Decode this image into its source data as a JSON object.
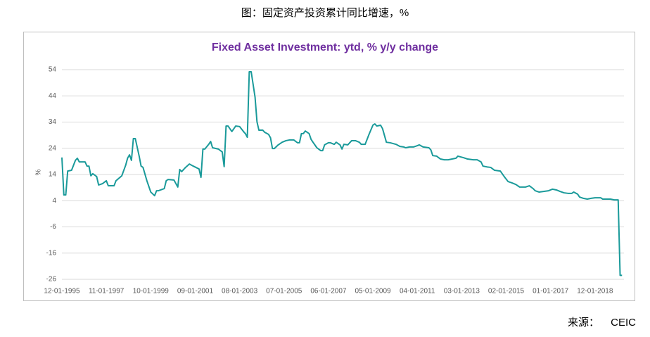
{
  "caption": "图：固定资产投资累计同比增速，%",
  "source_label": "来源：",
  "source": "CEIC",
  "chart_data": {
    "type": "line",
    "title": "Fixed Asset Investment: ytd, % y/y change",
    "y_label": "%",
    "color": "#1a9a9a",
    "grid": true,
    "ylim": [
      -26,
      54
    ],
    "yticks": [
      54,
      44,
      34,
      24,
      14,
      4,
      -6,
      -16,
      -26
    ],
    "xlim": [
      "12-01-1995",
      "03-01-2020"
    ],
    "xticks": [
      "12-01-1995",
      "11-01-1997",
      "10-01-1999",
      "09-01-2001",
      "08-01-2003",
      "07-01-2005",
      "06-01-2007",
      "05-01-2009",
      "04-01-2011",
      "03-01-2013",
      "02-01-2015",
      "01-01-2017",
      "12-01-2018"
    ],
    "x": [
      "12-01-1995",
      "01-01-1996",
      "02-01-1996",
      "03-01-1996",
      "05-01-1996",
      "07-01-1996",
      "08-01-1996",
      "09-01-1996",
      "12-01-1996",
      "01-01-1997",
      "02-01-1997",
      "03-01-1997",
      "04-01-1997",
      "06-01-1997",
      "07-01-1997",
      "09-01-1997",
      "11-01-1997",
      "12-01-1997",
      "03-01-1998",
      "04-01-1998",
      "07-01-1998",
      "09-01-1998",
      "10-01-1998",
      "11-01-1998",
      "12-01-1998",
      "01-01-1999",
      "02-01-1999",
      "04-01-1999",
      "05-01-1999",
      "06-01-1999",
      "08-01-1999",
      "10-01-1999",
      "12-01-1999",
      "01-01-2000",
      "02-01-2000",
      "05-01-2000",
      "06-01-2000",
      "07-01-2000",
      "10-01-2000",
      "12-01-2000",
      "01-01-2001",
      "02-01-2001",
      "04-01-2001",
      "06-01-2001",
      "08-01-2001",
      "11-01-2001",
      "12-01-2001",
      "01-01-2002",
      "02-01-2002",
      "04-01-2002",
      "05-01-2002",
      "06-01-2002",
      "09-01-2002",
      "11-01-2002",
      "12-01-2002",
      "01-01-2003",
      "02-01-2003",
      "04-01-2003",
      "06-01-2003",
      "08-01-2003",
      "10-01-2003",
      "11-01-2003",
      "12-01-2003",
      "01-01-2004",
      "02-01-2004",
      "04-01-2004",
      "05-01-2004",
      "06-01-2004",
      "08-01-2004",
      "09-01-2004",
      "11-01-2004",
      "12-01-2004",
      "01-01-2005",
      "02-01-2005",
      "04-01-2005",
      "06-01-2005",
      "08-01-2005",
      "10-01-2005",
      "12-01-2005",
      "02-01-2006",
      "03-01-2006",
      "04-01-2006",
      "05-01-2006",
      "06-01-2006",
      "08-01-2006",
      "09-01-2006",
      "10-01-2006",
      "12-01-2006",
      "02-01-2007",
      "03-01-2007",
      "04-01-2007",
      "06-01-2007",
      "07-01-2007",
      "09-01-2007",
      "10-01-2007",
      "12-01-2007",
      "01-01-2008",
      "02-01-2008",
      "04-01-2008",
      "06-01-2008",
      "08-01-2008",
      "10-01-2008",
      "11-01-2008",
      "01-01-2009",
      "03-01-2009",
      "05-01-2009",
      "06-01-2009",
      "07-01-2009",
      "09-01-2009",
      "10-01-2009",
      "12-01-2009",
      "02-01-2010",
      "05-01-2010",
      "07-01-2010",
      "09-01-2010",
      "10-01-2010",
      "12-01-2010",
      "02-01-2011",
      "04-01-2011",
      "05-01-2011",
      "07-01-2011",
      "10-01-2011",
      "11-01-2011",
      "12-01-2011",
      "02-01-2012",
      "04-01-2012",
      "06-01-2012",
      "08-01-2012",
      "10-01-2012",
      "12-01-2012",
      "01-01-2013",
      "04-01-2013",
      "06-01-2013",
      "09-01-2013",
      "11-01-2013",
      "01-01-2014",
      "02-01-2014",
      "04-01-2014",
      "06-01-2014",
      "08-01-2014",
      "11-01-2014",
      "01-01-2015",
      "03-01-2015",
      "05-01-2015",
      "07-01-2015",
      "09-01-2015",
      "12-01-2015",
      "02-01-2016",
      "04-01-2016",
      "05-01-2016",
      "07-01-2016",
      "09-01-2016",
      "12-01-2016",
      "02-01-2017",
      "04-01-2017",
      "06-01-2017",
      "08-01-2017",
      "10-01-2017",
      "12-01-2017",
      "01-01-2018",
      "03-01-2018",
      "04-01-2018",
      "06-01-2018",
      "08-01-2018",
      "10-01-2018",
      "12-01-2018",
      "03-01-2019",
      "04-01-2019",
      "06-01-2019",
      "08-01-2019",
      "10-01-2019",
      "12-01-2019",
      "01-01-2020",
      "02-01-2020"
    ],
    "values": [
      20.5,
      6.2,
      6.2,
      15.3,
      15.6,
      19.4,
      20.2,
      18.8,
      18.8,
      17.2,
      17.2,
      13.5,
      14.3,
      13.2,
      10.0,
      10.5,
      11.6,
      9.7,
      9.7,
      11.6,
      13.5,
      17.5,
      20.2,
      21.5,
      19.4,
      27.7,
      27.7,
      21.0,
      17.2,
      16.7,
      11.6,
      7.3,
      5.9,
      7.8,
      7.8,
      8.6,
      11.6,
      12.1,
      11.9,
      9.2,
      15.9,
      15.1,
      16.7,
      18.0,
      17.2,
      16.1,
      12.9,
      23.7,
      23.7,
      25.5,
      26.6,
      24.2,
      23.7,
      22.6,
      17.0,
      32.5,
      32.5,
      30.4,
      32.5,
      32.3,
      30.4,
      29.6,
      28.2,
      53.2,
      53.2,
      43.5,
      34.1,
      30.9,
      30.9,
      30.1,
      29.3,
      28.0,
      23.9,
      23.9,
      25.3,
      26.3,
      26.9,
      27.2,
      27.2,
      26.1,
      26.1,
      29.6,
      29.6,
      30.6,
      29.6,
      27.4,
      26.3,
      24.2,
      23.1,
      23.1,
      25.3,
      26.1,
      26.1,
      25.5,
      26.3,
      25.3,
      23.7,
      25.5,
      25.3,
      26.9,
      26.9,
      26.3,
      25.5,
      25.5,
      29.3,
      32.8,
      33.3,
      32.5,
      32.8,
      31.5,
      26.3,
      26.1,
      25.5,
      24.7,
      24.5,
      24.2,
      24.5,
      24.5,
      25.0,
      25.3,
      24.5,
      24.2,
      23.4,
      21.2,
      21.0,
      19.9,
      19.6,
      19.6,
      19.9,
      20.2,
      21.0,
      20.4,
      19.9,
      19.6,
      19.6,
      18.8,
      17.2,
      16.9,
      16.7,
      15.6,
      15.3,
      13.2,
      11.3,
      10.8,
      10.2,
      9.2,
      9.2,
      9.7,
      8.6,
      7.8,
      7.3,
      7.5,
      7.8,
      8.4,
      8.1,
      7.5,
      7.0,
      6.8,
      6.8,
      7.3,
      6.5,
      5.4,
      4.9,
      4.6,
      4.9,
      5.1,
      5.1,
      4.6,
      4.6,
      4.6,
      4.3,
      4.3,
      -24.5,
      -24.5
    ]
  }
}
